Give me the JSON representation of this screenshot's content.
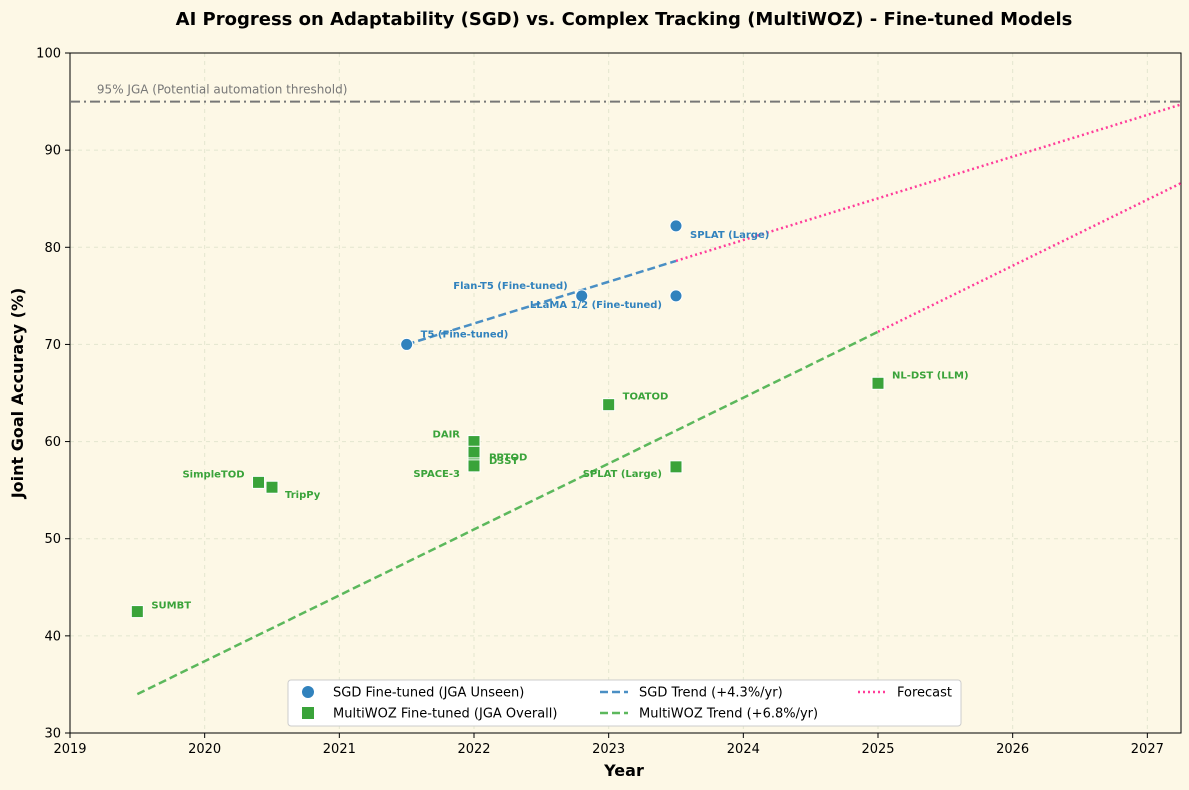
{
  "chart_data": {
    "type": "scatter",
    "title": "AI Progress on Adaptability (SGD) vs. Complex Tracking (MultiWOZ) - Fine-tuned Models",
    "xlabel": "Year",
    "ylabel": "Joint Goal Accuracy (%)",
    "xlim": [
      2019,
      2027.25
    ],
    "ylim": [
      30,
      100
    ],
    "xticks": [
      2019,
      2020,
      2021,
      2022,
      2023,
      2024,
      2025,
      2026,
      2027
    ],
    "yticks": [
      30,
      40,
      50,
      60,
      70,
      80,
      90,
      100
    ],
    "grid": true,
    "legend_position": "bottom-center",
    "colors": {
      "sgd": "#3182bd",
      "multiwoz": "#3aa33a",
      "sgd_trend": "#4a8fc4",
      "multiwoz_trend": "#5cb85c",
      "forecast": "#ff3d9a",
      "threshold": "#777777",
      "background": "#fdf8e6"
    },
    "threshold": {
      "y": 95,
      "label": "95% JGA (Potential automation threshold)"
    },
    "series": [
      {
        "name": "SGD Fine-tuned (JGA Unseen)",
        "marker": "circle",
        "points": [
          {
            "x": 2021.5,
            "y": 70.0,
            "label": "T5 (Fine-tuned)"
          },
          {
            "x": 2022.8,
            "y": 75.0,
            "label": "Flan-T5 (Fine-tuned)"
          },
          {
            "x": 2023.5,
            "y": 75.0,
            "label": "LLaMA 1/2 (Fine-tuned)"
          },
          {
            "x": 2023.5,
            "y": 82.2,
            "label": "SPLAT (Large)"
          }
        ]
      },
      {
        "name": "MultiWOZ Fine-tuned (JGA Overall)",
        "marker": "square",
        "points": [
          {
            "x": 2019.5,
            "y": 42.5,
            "label": "SUMBT"
          },
          {
            "x": 2020.4,
            "y": 55.8,
            "label": "SimpleTOD"
          },
          {
            "x": 2020.5,
            "y": 55.3,
            "label": "TripPy"
          },
          {
            "x": 2022.0,
            "y": 60.0,
            "label": "DAIR"
          },
          {
            "x": 2022.0,
            "y": 58.9,
            "label": "PPTOD"
          },
          {
            "x": 2022.0,
            "y": 57.7,
            "label": "D3ST"
          },
          {
            "x": 2022.0,
            "y": 57.5,
            "label": "SPACE-3"
          },
          {
            "x": 2023.0,
            "y": 63.8,
            "label": "TOATOD"
          },
          {
            "x": 2023.5,
            "y": 57.4,
            "label": "SPLAT (Large)"
          },
          {
            "x": 2025.0,
            "y": 66.0,
            "label": "NL-DST (LLM)"
          }
        ]
      }
    ],
    "trends": [
      {
        "name": "SGD Trend (+4.3%/yr)",
        "x": [
          2021.5,
          2023.5
        ],
        "y": [
          70.0,
          78.6
        ]
      },
      {
        "name": "MultiWOZ Trend (+6.8%/yr)",
        "x": [
          2019.5,
          2025.0
        ],
        "y": [
          34.0,
          71.3
        ]
      }
    ],
    "forecast": {
      "name": "Forecast",
      "lines": [
        {
          "x": [
            2023.5,
            2027.25
          ],
          "y": [
            78.6,
            94.7
          ]
        },
        {
          "x": [
            2025.0,
            2027.25
          ],
          "y": [
            71.3,
            86.6
          ]
        }
      ]
    },
    "legend": [
      {
        "label": "SGD Fine-tuned (JGA Unseen)",
        "kind": "circle",
        "color": "#3182bd"
      },
      {
        "label": "MultiWOZ Fine-tuned (JGA Overall)",
        "kind": "square",
        "color": "#3aa33a"
      },
      {
        "label": "SGD Trend (+4.3%/yr)",
        "kind": "dash",
        "color": "#4a8fc4"
      },
      {
        "label": "MultiWOZ Trend (+6.8%/yr)",
        "kind": "dash",
        "color": "#5cb85c"
      },
      {
        "label": "Forecast",
        "kind": "dot",
        "color": "#ff3d9a"
      }
    ]
  }
}
